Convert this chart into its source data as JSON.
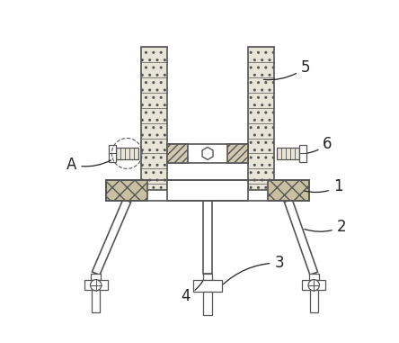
{
  "bg_color": "#ffffff",
  "line_color": "#555555",
  "label_color": "#222222",
  "label_fontsize": 12,
  "figsize": [
    4.44,
    3.81
  ],
  "dpi": 100,
  "post_dot_color": "#e8e4d8",
  "hatch_fill_color": "#d0c8b0",
  "base_hatch_color": "#c8c0a0"
}
